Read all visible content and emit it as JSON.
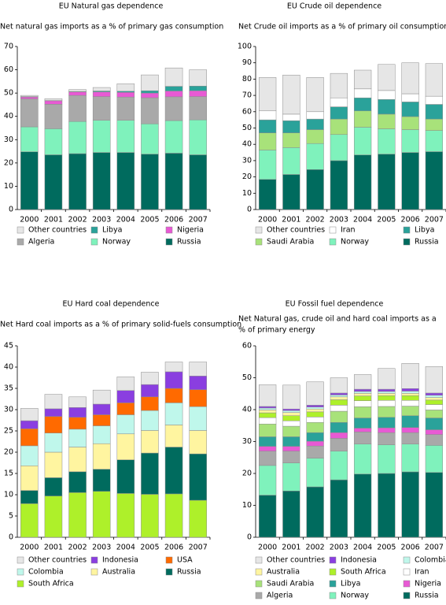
{
  "chart_data": [
    {
      "type": "bar",
      "stacked": true,
      "title": "EU Natural gas dependence",
      "ylabel": "Net natural gas imports as a % of primary gas consumption",
      "categories": [
        "2000",
        "2001",
        "2002",
        "2003",
        "2004",
        "2005",
        "2006",
        "2007"
      ],
      "ylim": [
        0,
        70
      ],
      "yticks": [
        0,
        10,
        20,
        30,
        40,
        50,
        60,
        70
      ],
      "legend_position": "bottom",
      "legend_columns": 3,
      "legend_order": [
        "Other countries",
        "Libya",
        "Nigeria",
        "Algeria",
        "Norway",
        "Russia"
      ],
      "series": [
        {
          "name": "Russia",
          "color": "#006b5e",
          "values": [
            24.8,
            23.5,
            24.0,
            24.5,
            24.5,
            23.8,
            24.2,
            23.5
          ]
        },
        {
          "name": "Norway",
          "color": "#7ff2bc",
          "values": [
            10.7,
            11.2,
            13.8,
            13.8,
            13.8,
            13.0,
            14.0,
            15.0
          ]
        },
        {
          "name": "Algeria",
          "color": "#a9a9a9",
          "values": [
            12.0,
            10.5,
            11.2,
            10.2,
            10.0,
            11.2,
            10.2,
            10.0
          ]
        },
        {
          "name": "Nigeria",
          "color": "#e85ad4",
          "values": [
            0.8,
            1.5,
            1.5,
            2.0,
            2.0,
            2.0,
            2.5,
            2.5
          ]
        },
        {
          "name": "Libya",
          "color": "#2aa29a",
          "values": [
            0.2,
            0.1,
            0.2,
            0.4,
            0.5,
            1.0,
            2.0,
            2.0
          ]
        },
        {
          "name": "Other countries",
          "color": "#e6e6e6",
          "values": [
            0.5,
            0.8,
            0.8,
            1.5,
            3.2,
            6.8,
            7.9,
            7.0
          ]
        }
      ]
    },
    {
      "type": "bar",
      "stacked": true,
      "title": "EU Crude oil dependence",
      "ylabel": "Net Crude oil imports as a % of primary oil consumption",
      "categories": [
        "2000",
        "2001",
        "2002",
        "2003",
        "2004",
        "2005",
        "2006",
        "2007"
      ],
      "ylim": [
        0,
        100
      ],
      "yticks": [
        0,
        10,
        20,
        30,
        40,
        50,
        60,
        70,
        80,
        90,
        100
      ],
      "legend_position": "bottom",
      "legend_columns": 3,
      "legend_order": [
        "Other countries",
        "Iran",
        "Libya",
        "Saudi Arabia",
        "Norway",
        "Russia"
      ],
      "series": [
        {
          "name": "Russia",
          "color": "#006b5e",
          "values": [
            18.5,
            21.5,
            24.5,
            30.0,
            33.5,
            34.0,
            35.0,
            35.5
          ]
        },
        {
          "name": "Norway",
          "color": "#7ff2bc",
          "values": [
            18.0,
            16.5,
            16.0,
            16.0,
            17.0,
            15.5,
            14.0,
            13.0
          ]
        },
        {
          "name": "Saudi Arabia",
          "color": "#a8e27a",
          "values": [
            10.5,
            9.0,
            8.5,
            9.5,
            10.0,
            9.0,
            8.0,
            7.0
          ]
        },
        {
          "name": "Libya",
          "color": "#2aa29a",
          "values": [
            8.0,
            7.5,
            6.5,
            7.5,
            8.0,
            9.0,
            9.0,
            9.0
          ]
        },
        {
          "name": "Iran",
          "color": "#ffffff",
          "values": [
            5.5,
            4.0,
            4.5,
            5.5,
            5.5,
            5.5,
            5.0,
            5.0
          ]
        },
        {
          "name": "Other countries",
          "color": "#e6e6e6",
          "values": [
            20.5,
            24.0,
            21.0,
            15.0,
            11.5,
            16.0,
            19.0,
            20.0
          ]
        }
      ]
    },
    {
      "type": "bar",
      "stacked": true,
      "title": "EU Hard coal dependence",
      "ylabel": "Net Hard coal imports as a % of primary solid-fuels consumption",
      "categories": [
        "2000",
        "2001",
        "2002",
        "2003",
        "2004",
        "2005",
        "2006",
        "2007"
      ],
      "ylim": [
        0,
        45
      ],
      "yticks": [
        0,
        5,
        10,
        15,
        20,
        25,
        30,
        35,
        40,
        45
      ],
      "legend_position": "bottom",
      "legend_columns": 3,
      "legend_order": [
        "Other countries",
        "Indonesia",
        "USA",
        "Colombia",
        "Australia",
        "Russia",
        "South Africa"
      ],
      "series": [
        {
          "name": "South Africa",
          "color": "#aef02a",
          "values": [
            7.9,
            9.7,
            10.5,
            10.8,
            10.3,
            10.1,
            10.2,
            8.7
          ]
        },
        {
          "name": "Russia",
          "color": "#006b5e",
          "values": [
            3.1,
            4.3,
            4.9,
            5.2,
            7.9,
            9.7,
            11.0,
            10.9
          ]
        },
        {
          "name": "Australia",
          "color": "#fff5a0",
          "values": [
            5.8,
            6.0,
            5.8,
            6.0,
            6.1,
            5.3,
            5.2,
            5.5
          ]
        },
        {
          "name": "Colombia",
          "color": "#bff7eb",
          "values": [
            4.7,
            4.5,
            4.2,
            4.2,
            4.5,
            4.7,
            5.2,
            5.6
          ]
        },
        {
          "name": "USA",
          "color": "#ff6a00",
          "values": [
            4.0,
            3.9,
            2.8,
            2.6,
            2.8,
            3.2,
            3.4,
            4.0
          ]
        },
        {
          "name": "Indonesia",
          "color": "#8a3ee0",
          "values": [
            1.9,
            1.8,
            2.3,
            2.5,
            2.9,
            2.9,
            3.9,
            3.2
          ]
        },
        {
          "name": "Other countries",
          "color": "#e6e6e6",
          "values": [
            2.9,
            3.4,
            2.5,
            3.3,
            3.2,
            2.9,
            2.3,
            3.3
          ]
        }
      ]
    },
    {
      "type": "bar",
      "stacked": true,
      "title": "EU Fossil fuel dependence",
      "ylabel": "Net Natural gas, crude oil and hard coal imports as a % of primary energy",
      "categories": [
        "2000",
        "2001",
        "2002",
        "2003",
        "2004",
        "2005",
        "2006",
        "2007"
      ],
      "ylim": [
        0,
        60
      ],
      "yticks": [
        0,
        10,
        20,
        30,
        40,
        50,
        60
      ],
      "legend_position": "bottom",
      "legend_columns": 3,
      "legend_order": [
        "Other countries",
        "Indonesia",
        "Colombia",
        "Australia",
        "South Africa",
        "Iran",
        "Saudi Arabia",
        "Libya",
        "Nigeria",
        "Algeria",
        "Norway",
        "Russia"
      ],
      "series": [
        {
          "name": "Russia",
          "color": "#006b5e",
          "values": [
            13.2,
            14.5,
            15.8,
            18.0,
            19.8,
            20.0,
            20.5,
            20.3
          ]
        },
        {
          "name": "Norway",
          "color": "#7ff2bc",
          "values": [
            9.3,
            8.8,
            9.0,
            9.0,
            9.4,
            9.0,
            8.7,
            8.5
          ]
        },
        {
          "name": "Algeria",
          "color": "#a9a9a9",
          "values": [
            4.5,
            3.7,
            3.8,
            4.0,
            3.8,
            3.8,
            3.6,
            3.4
          ]
        },
        {
          "name": "Nigeria",
          "color": "#e85ad4",
          "values": [
            1.5,
            1.5,
            1.5,
            1.8,
            1.2,
            1.5,
            1.6,
            1.5
          ]
        },
        {
          "name": "Libya",
          "color": "#2aa29a",
          "values": [
            3.0,
            3.0,
            2.7,
            3.2,
            3.2,
            3.3,
            3.7,
            3.7
          ]
        },
        {
          "name": "Saudi Arabia",
          "color": "#a8e27a",
          "values": [
            4.0,
            3.3,
            3.2,
            3.5,
            3.5,
            3.4,
            3.0,
            2.5
          ]
        },
        {
          "name": "Iran",
          "color": "#ffffff",
          "values": [
            2.0,
            1.7,
            1.7,
            1.9,
            1.9,
            1.9,
            1.8,
            1.7
          ]
        },
        {
          "name": "South Africa",
          "color": "#aef02a",
          "values": [
            1.5,
            1.6,
            1.6,
            1.7,
            1.5,
            1.5,
            1.5,
            1.4
          ]
        },
        {
          "name": "Australia",
          "color": "#fff5a0",
          "values": [
            0.9,
            1.0,
            0.9,
            0.9,
            0.8,
            0.7,
            0.7,
            0.8
          ]
        },
        {
          "name": "Colombia",
          "color": "#bff7eb",
          "values": [
            0.6,
            0.6,
            0.6,
            0.6,
            0.6,
            0.6,
            0.7,
            0.7
          ]
        },
        {
          "name": "Indonesia",
          "color": "#8a3ee0",
          "values": [
            0.5,
            0.5,
            0.6,
            0.6,
            0.7,
            0.7,
            0.8,
            0.7
          ]
        },
        {
          "name": "Other countries",
          "color": "#e6e6e6",
          "values": [
            6.8,
            7.5,
            7.3,
            4.8,
            4.6,
            6.5,
            7.9,
            8.3
          ]
        }
      ]
    }
  ]
}
